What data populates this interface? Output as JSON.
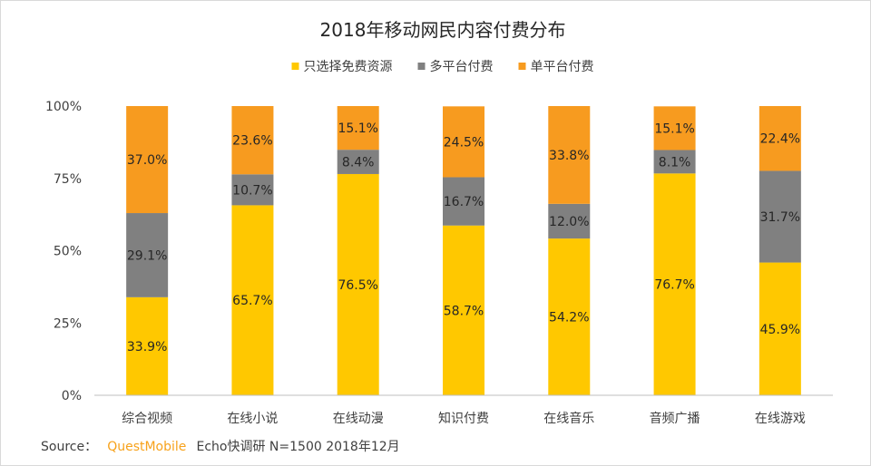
{
  "chart_data": {
    "type": "bar",
    "stacked": true,
    "title": "2018年移动网民内容付费分布",
    "categories": [
      "综合视频",
      "在线小说",
      "在线动漫",
      "知识付费",
      "在线音乐",
      "音频广播",
      "在线游戏"
    ],
    "series": [
      {
        "name": "只选择免费资源",
        "color": "#ffc800",
        "values": [
          33.9,
          65.7,
          76.5,
          58.7,
          54.2,
          76.7,
          45.9
        ]
      },
      {
        "name": "多平台付费",
        "color": "#808080",
        "values": [
          29.1,
          10.7,
          8.4,
          16.7,
          12.0,
          8.1,
          31.7
        ]
      },
      {
        "name": "单平台付费",
        "color": "#f79b1f",
        "values": [
          37.0,
          23.6,
          15.1,
          24.5,
          33.8,
          15.1,
          22.4
        ]
      }
    ],
    "ylim": [
      0,
      100
    ],
    "yticks": [
      0,
      25,
      50,
      75,
      100
    ],
    "ytick_labels": [
      "0%",
      "25%",
      "50%",
      "75%",
      "100%"
    ],
    "legend_position": "top-center",
    "xlabel": "",
    "ylabel": ""
  },
  "source": {
    "label": "Source：",
    "brand": "QuestMobile",
    "rest": "Echo快调研 N=1500 2018年12月"
  }
}
